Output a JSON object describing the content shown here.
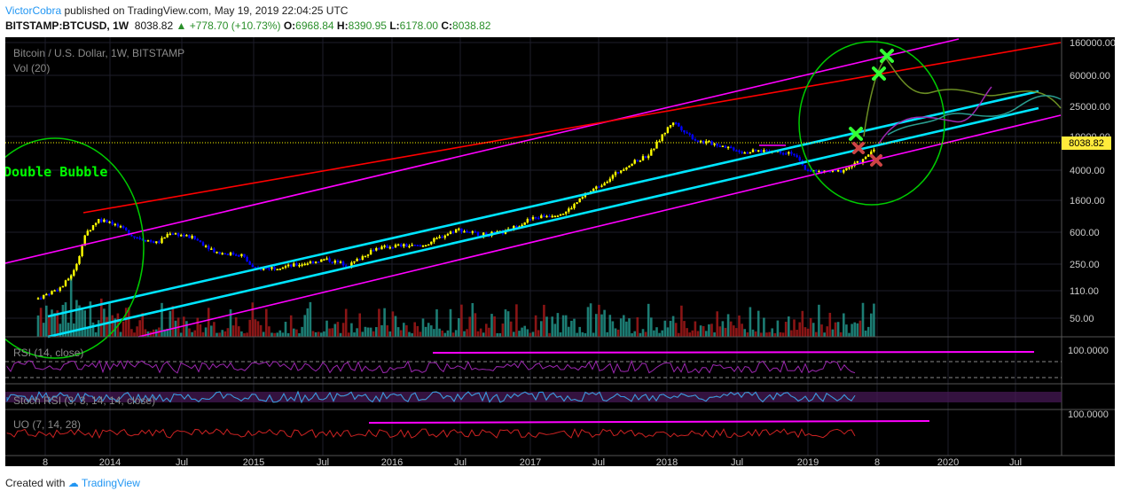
{
  "header": {
    "user": "VictorCobra",
    "published": "published on TradingView.com, May 19, 2019 22:04:25 UTC",
    "symbol": "BITSTAMP:BTCUSD, 1W",
    "price": "8038.82",
    "change": "▲ +778.70 (+10.73%)",
    "open_label": "O:",
    "open": "6968.84",
    "high_label": "H:",
    "high": "8390.95",
    "low_label": "L:",
    "low": "6178.00",
    "close_label": "C:",
    "close": "8038.82"
  },
  "footer": {
    "created_with": "Created with",
    "brand": "TradingView"
  },
  "colors": {
    "bg": "#000000",
    "up_candle": "#ffff00",
    "down_candle": "#0000ff",
    "cyan_channel": "#00e5ff",
    "magenta_channel": "#ff00ff",
    "red_line": "#ff0000",
    "green_ellipse": "#00cc00",
    "rsi": "#9c27b0",
    "uo": "#cc2222",
    "vol_up": "#26a69a",
    "vol_down": "#b71c1c"
  },
  "chart_data": {
    "type": "candlestick",
    "title": "Bitcoin / U.S. Dollar, 1W, BITSTAMP",
    "volume_label": "Vol (20)",
    "annotation": "Double Bubble",
    "last_price_label": "8038.82",
    "yscale": "log",
    "y_ticks": [
      "160000.00",
      "60000.00",
      "25000.00",
      "10000.00",
      "4000.00",
      "1600.00",
      "600.00",
      "250.00",
      "110.00",
      "50.00"
    ],
    "x_ticks": [
      "8",
      "2014",
      "Jul",
      "2015",
      "Jul",
      "2016",
      "Jul",
      "2017",
      "Jul",
      "2018",
      "Jul",
      "2019",
      "8",
      "2020",
      "Jul"
    ],
    "price_path": [
      [
        "2013-07",
        90
      ],
      [
        "2013-09",
        125
      ],
      [
        "2013-10",
        200
      ],
      [
        "2013-11",
        600
      ],
      [
        "2013-12",
        900
      ],
      [
        "2014-01",
        850
      ],
      [
        "2014-03",
        550
      ],
      [
        "2014-05",
        450
      ],
      [
        "2014-06",
        620
      ],
      [
        "2014-08",
        520
      ],
      [
        "2014-10",
        340
      ],
      [
        "2014-12",
        320
      ],
      [
        "2015-01",
        210
      ],
      [
        "2015-04",
        230
      ],
      [
        "2015-07",
        280
      ],
      [
        "2015-09",
        235
      ],
      [
        "2015-11",
        380
      ],
      [
        "2016-01",
        420
      ],
      [
        "2016-03",
        410
      ],
      [
        "2016-06",
        680
      ],
      [
        "2016-08",
        575
      ],
      [
        "2016-10",
        620
      ],
      [
        "2016-12",
        900
      ],
      [
        "2017-01",
        980
      ],
      [
        "2017-03",
        1100
      ],
      [
        "2017-05",
        2000
      ],
      [
        "2017-06",
        2500
      ],
      [
        "2017-08",
        4200
      ],
      [
        "2017-10",
        6000
      ],
      [
        "2017-12",
        16000
      ],
      [
        "2018-01",
        12000
      ],
      [
        "2018-02",
        9000
      ],
      [
        "2018-04",
        8000
      ],
      [
        "2018-06",
        6500
      ],
      [
        "2018-08",
        6800
      ],
      [
        "2018-10",
        6400
      ],
      [
        "2018-11",
        4000
      ],
      [
        "2018-12",
        3600
      ],
      [
        "2019-02",
        3700
      ],
      [
        "2019-04",
        5200
      ],
      [
        "2019-05",
        8038
      ]
    ],
    "panels": {
      "rsi_label": "RSI (14, close)",
      "rsi_tick": "100.0000",
      "stoch_label": "Stoch RSI (3, 3, 14, 14, close)",
      "uo_label": "UO (7, 14, 28)",
      "uo_tick": "100.0000"
    }
  }
}
